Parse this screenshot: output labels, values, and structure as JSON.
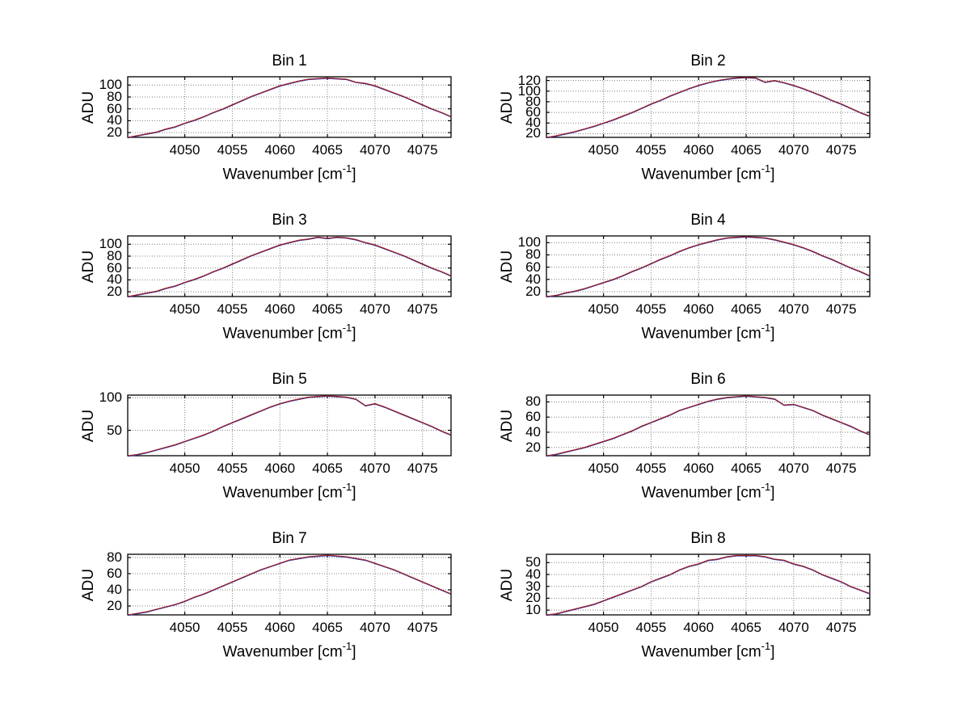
{
  "figure": {
    "background": "#ffffff",
    "axis_color": "#000000",
    "grid_color": "#808080",
    "trace_colors": [
      "#3333aa",
      "#a01c1c"
    ],
    "traces_overlaid": 2
  },
  "chart_data": {
    "type": "line",
    "layout": "4 rows x 2 columns of subplots",
    "x_label": "Wavenumber [cm^-1]",
    "xlabel_parts": {
      "prefix": "Wavenumber [cm",
      "sup": "-1",
      "suffix": "]"
    },
    "y_label": "ADU",
    "grid": true,
    "legend": "none",
    "xlim": [
      4044,
      4078
    ],
    "x_ticks": [
      4050,
      4055,
      4060,
      4065,
      4070,
      4075
    ],
    "x": [
      4044,
      4045,
      4046,
      4047,
      4048,
      4049,
      4050,
      4051,
      4052,
      4053,
      4054,
      4055,
      4056,
      4057,
      4058,
      4059,
      4060,
      4061,
      4062,
      4063,
      4064,
      4065,
      4066,
      4067,
      4068,
      4069,
      4070,
      4071,
      4072,
      4073,
      4074,
      4075,
      4076,
      4077,
      4078
    ],
    "subplots": [
      {
        "title": "Bin 1",
        "y_ticks": [
          20,
          40,
          60,
          80,
          100
        ],
        "ylim": [
          12,
          114
        ],
        "y": [
          12,
          15,
          18,
          21,
          26,
          30,
          36,
          41,
          47,
          54,
          60,
          67,
          74,
          81,
          87,
          93,
          99,
          103,
          107,
          110,
          111,
          112,
          111,
          110,
          105,
          103,
          99,
          93,
          87,
          81,
          74,
          67,
          60,
          54,
          47
        ]
      },
      {
        "title": "Bin 2",
        "y_ticks": [
          20,
          40,
          60,
          80,
          100,
          120
        ],
        "ylim": [
          13,
          127
        ],
        "y": [
          13,
          16,
          20,
          24,
          29,
          34,
          40,
          46,
          53,
          60,
          68,
          76,
          83,
          91,
          98,
          105,
          111,
          116,
          120,
          123,
          125,
          126,
          125,
          117,
          120,
          116,
          111,
          105,
          98,
          91,
          83,
          76,
          68,
          60,
          53
        ]
      },
      {
        "title": "Bin 3",
        "y_ticks": [
          20,
          40,
          60,
          80,
          100
        ],
        "ylim": [
          12,
          114
        ],
        "y": [
          12,
          15,
          18,
          21,
          26,
          30,
          36,
          41,
          47,
          54,
          60,
          67,
          74,
          81,
          87,
          93,
          99,
          103,
          107,
          109,
          112,
          110,
          112,
          111,
          108,
          103,
          99,
          93,
          87,
          81,
          74,
          67,
          60,
          54,
          47
        ]
      },
      {
        "title": "Bin 4",
        "y_ticks": [
          20,
          40,
          60,
          80,
          100
        ],
        "ylim": [
          12,
          111
        ],
        "y": [
          12,
          14,
          18,
          21,
          25,
          30,
          35,
          40,
          46,
          53,
          59,
          66,
          73,
          79,
          86,
          92,
          97,
          101,
          105,
          108,
          109,
          110,
          109,
          108,
          105,
          101,
          97,
          92,
          86,
          79,
          73,
          66,
          59,
          53,
          46
        ]
      },
      {
        "title": "Bin 5",
        "y_ticks": [
          50,
          100
        ],
        "ylim": [
          11,
          104
        ],
        "y": [
          11,
          13,
          16,
          20,
          24,
          28,
          33,
          38,
          43,
          49,
          56,
          62,
          68,
          74,
          80,
          86,
          91,
          95,
          98,
          101,
          102,
          103,
          102,
          101,
          98,
          88,
          91,
          86,
          80,
          74,
          68,
          62,
          56,
          49,
          43
        ]
      },
      {
        "title": "Bin 6",
        "y_ticks": [
          20,
          40,
          60,
          80
        ],
        "ylim": [
          9,
          89
        ],
        "y": [
          9,
          11,
          14,
          17,
          20,
          24,
          28,
          32,
          37,
          42,
          48,
          53,
          58,
          63,
          69,
          73,
          77,
          81,
          84,
          86,
          87,
          88,
          87,
          86,
          84,
          76,
          77,
          73,
          69,
          63,
          58,
          53,
          48,
          42,
          37
        ]
      },
      {
        "title": "Bin 7",
        "y_ticks": [
          20,
          40,
          60,
          80
        ],
        "ylim": [
          9,
          84
        ],
        "y": [
          9,
          11,
          13,
          16,
          19,
          22,
          26,
          31,
          35,
          40,
          45,
          50,
          55,
          60,
          65,
          69,
          73,
          77,
          79,
          81,
          82,
          83,
          82,
          81,
          79,
          77,
          73,
          69,
          65,
          60,
          55,
          50,
          45,
          40,
          35
        ]
      },
      {
        "title": "Bin 8",
        "y_ticks": [
          10,
          20,
          30,
          40,
          50
        ],
        "ylim": [
          6,
          57
        ],
        "y": [
          6,
          7,
          9,
          11,
          13,
          15,
          18,
          21,
          24,
          27,
          30,
          34,
          37,
          40,
          44,
          47,
          49,
          52,
          53,
          55,
          56,
          56,
          56,
          55,
          53,
          52,
          49,
          47,
          44,
          40,
          37,
          34,
          30,
          27,
          24
        ]
      }
    ]
  }
}
